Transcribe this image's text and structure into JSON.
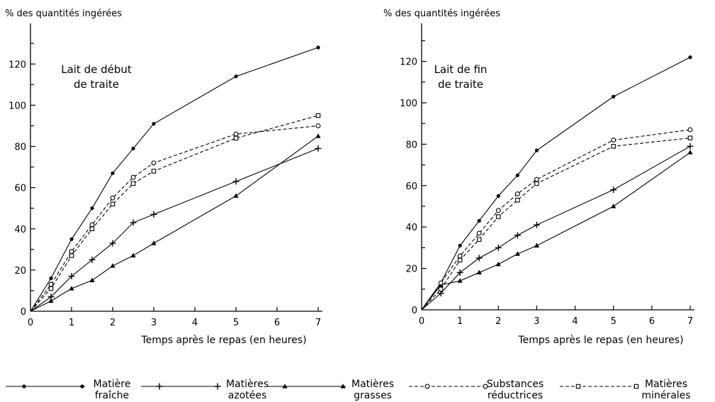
{
  "chart_data": [
    {
      "type": "line",
      "title": "Lait de début de traite",
      "title_lines": [
        "Lait de début",
        "de  traite"
      ],
      "ylabel": "% des quantités ingérées",
      "xlabel": "Temps après le repas (en heures)",
      "xlim": [
        0,
        7
      ],
      "ylim": [
        0,
        130
      ],
      "xticks": [
        "0",
        "1",
        "2",
        "3",
        "4",
        "5",
        "6",
        "7"
      ],
      "yticks": [
        "0",
        "20",
        "40",
        "60",
        "80",
        "100",
        "120"
      ],
      "grid": false,
      "series": [
        {
          "name": "Matière fraîche",
          "x": [
            0,
            0.5,
            1,
            1.5,
            2,
            2.5,
            3,
            5,
            7
          ],
          "values": [
            0,
            16,
            35,
            50,
            67,
            79,
            91,
            114,
            128
          ]
        },
        {
          "name": "Matières azotées",
          "x": [
            0,
            0.5,
            1,
            1.5,
            2,
            2.5,
            3,
            5,
            7
          ],
          "values": [
            0,
            7,
            17,
            25,
            33,
            43,
            47,
            63,
            79
          ]
        },
        {
          "name": "Matières grasses",
          "x": [
            0,
            0.5,
            1,
            1.5,
            2,
            2.5,
            3,
            5,
            7
          ],
          "values": [
            0,
            5,
            11,
            15,
            22,
            27,
            33,
            56,
            85
          ]
        },
        {
          "name": "Substances réductrices",
          "x": [
            0,
            0.5,
            1,
            1.5,
            2,
            2.5,
            3,
            5,
            7
          ],
          "values": [
            0,
            13,
            29,
            42,
            55,
            65,
            72,
            86,
            90
          ]
        },
        {
          "name": "Matières minérales",
          "x": [
            0,
            0.5,
            1,
            1.5,
            2,
            2.5,
            3,
            5,
            7
          ],
          "values": [
            0,
            11,
            27,
            40,
            52,
            62,
            68,
            84,
            95
          ]
        }
      ]
    },
    {
      "type": "line",
      "title": "Lait de fin de traite",
      "title_lines": [
        "Lait  de  fin",
        "de  traite"
      ],
      "ylabel": "% des quantités ingérées",
      "xlabel": "Temps après le repas (en heures)",
      "xlim": [
        0,
        7
      ],
      "ylim": [
        0,
        135
      ],
      "xticks": [
        "0",
        "1",
        "2",
        "3",
        "4",
        "5",
        "6",
        "7"
      ],
      "yticks": [
        "0",
        "20",
        "40",
        "60",
        "80",
        "100",
        "120"
      ],
      "grid": false,
      "series": [
        {
          "name": "Matière fraîche",
          "x": [
            0,
            0.5,
            1,
            1.5,
            2,
            2.5,
            3,
            5,
            7
          ],
          "values": [
            0,
            13,
            31,
            43,
            55,
            65,
            77,
            103,
            122
          ]
        },
        {
          "name": "Matières azotées",
          "x": [
            0,
            0.5,
            1,
            1.5,
            2,
            2.5,
            3,
            5,
            7
          ],
          "values": [
            0,
            8,
            18,
            25,
            30,
            36,
            41,
            58,
            79
          ]
        },
        {
          "name": "Matières grasses",
          "x": [
            0,
            0.5,
            1,
            1.5,
            2,
            2.5,
            3,
            5,
            7
          ],
          "values": [
            0,
            12,
            14,
            18,
            22,
            27,
            31,
            50,
            76
          ]
        },
        {
          "name": "Substances réductrices",
          "x": [
            0,
            0.5,
            1,
            1.5,
            2,
            2.5,
            3,
            5,
            7
          ],
          "values": [
            0,
            13,
            26,
            37,
            48,
            56,
            63,
            82,
            87
          ]
        },
        {
          "name": "Matières minérales",
          "x": [
            0,
            0.5,
            1,
            1.5,
            2,
            2.5,
            3,
            5,
            7
          ],
          "values": [
            0,
            10,
            24,
            34,
            45,
            53,
            61,
            79,
            83
          ]
        }
      ]
    }
  ],
  "legend": {
    "placement": "bottom",
    "items": [
      {
        "series": "Matière fraîche",
        "line1": "Matière",
        "line2": "fraîche",
        "marker": "dot",
        "dashed": false
      },
      {
        "series": "Matières azotées",
        "line1": "Matières",
        "line2": "azotées",
        "marker": "plus",
        "dashed": false
      },
      {
        "series": "Matières grasses",
        "line1": "Matières",
        "line2": "grasses",
        "marker": "triangle",
        "dashed": false
      },
      {
        "series": "Substances réductrices",
        "line1": "Substances",
        "line2": "réductrices",
        "marker": "circle-open",
        "dashed": true
      },
      {
        "series": "Matières minérales",
        "line1": "Matières",
        "line2": "minérales",
        "marker": "square-open",
        "dashed": true
      }
    ]
  },
  "colors": {
    "ink": "#000000",
    "background": "#ffffff"
  }
}
